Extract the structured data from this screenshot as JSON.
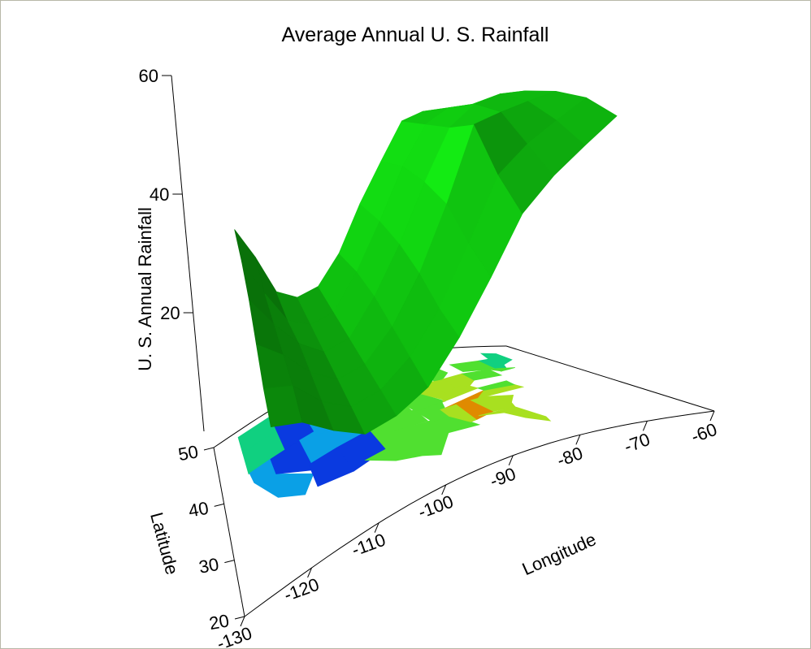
{
  "chart_data": {
    "type": "surface3d",
    "title": "Average Annual U. S. Rainfall",
    "zlabel": "U. S. Annual Rainfall",
    "xlabel": "Longitude",
    "ylabel": "Latitude",
    "zlim": [
      0,
      60
    ],
    "xlim": [
      -130,
      -60
    ],
    "ylim": [
      20,
      50
    ],
    "z_ticks": [
      "20",
      "40",
      "60"
    ],
    "x_ticks": [
      "-130",
      "-120",
      "-110",
      "-100",
      "-90",
      "-80",
      "-70",
      "-60"
    ],
    "y_ticks": [
      "20",
      "30",
      "40",
      "50"
    ],
    "surface": {
      "color": "#11c211",
      "longitude": [
        -125,
        -120,
        -115,
        -110,
        -105,
        -100,
        -95,
        -90,
        -85,
        -80,
        -75,
        -70
      ],
      "latitude": [
        25,
        30,
        35,
        40,
        45,
        50
      ],
      "rainfall": [
        [
          22,
          19,
          14,
          10,
          10,
          12,
          18,
          26,
          35,
          40,
          44,
          48
        ],
        [
          24,
          21,
          15,
          11,
          11,
          14,
          20,
          29,
          39,
          43,
          46,
          49
        ],
        [
          27,
          22,
          16,
          12,
          12,
          16,
          23,
          33,
          45,
          46,
          47,
          48
        ],
        [
          30,
          23,
          17,
          13,
          13,
          18,
          25,
          34,
          42,
          45,
          46,
          46
        ],
        [
          32,
          24,
          17,
          14,
          14,
          19,
          26,
          34,
          40,
          42,
          42,
          42
        ],
        [
          33,
          26,
          18,
          15,
          15,
          19,
          26,
          32,
          38,
          39,
          39,
          38
        ]
      ]
    },
    "map": {
      "projection": "US states colored by average annual rainfall",
      "colors": [
        "#0a3ae0",
        "#0aa0e6",
        "#10d080",
        "#50e030",
        "#a8e020",
        "#e08a00"
      ]
    }
  }
}
